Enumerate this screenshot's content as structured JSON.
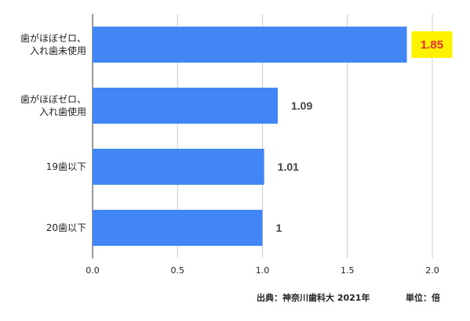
{
  "chart_data": {
    "type": "bar",
    "orientation": "horizontal",
    "categories": [
      [
        "歯がほぼゼロ、",
        "入れ歯未使用"
      ],
      [
        "歯がほぼゼロ、",
        "入れ歯使用"
      ],
      [
        "19歯以下"
      ],
      [
        "20歯以下"
      ]
    ],
    "values": [
      1.85,
      1.09,
      1.01,
      1
    ],
    "value_labels": [
      "1.85",
      "1.09",
      "1.01",
      "1"
    ],
    "highlight_index": 0,
    "x_ticks": [
      "0.0",
      "0.5",
      "1.0",
      "1.5",
      "2.0"
    ],
    "xlim": [
      0,
      2.0
    ],
    "grid": "vertical",
    "bar_color": "#4285f4",
    "highlight_label_bg": "#fff200",
    "highlight_label_color": "#e03030"
  },
  "footer": {
    "source": "出典：神奈川歯科大 2021年",
    "unit": "単位：倍"
  }
}
